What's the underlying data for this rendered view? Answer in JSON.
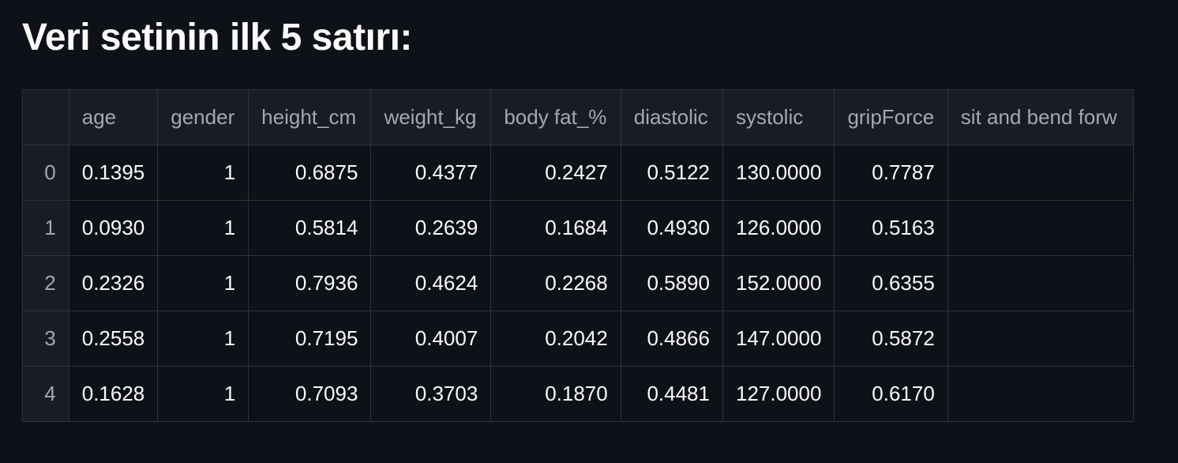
{
  "heading": "Veri setinin ilk 5 satırı:",
  "table": {
    "columns": [
      "",
      "age",
      "gender",
      "height_cm",
      "weight_kg",
      "body fat_%",
      "diastolic",
      "systolic",
      "gripForce",
      "sit and bend forw"
    ],
    "rows": [
      {
        "index": "0",
        "age": "0.1395",
        "gender": "1",
        "height_cm": "0.6875",
        "weight_kg": "0.4377",
        "body_fat": "0.2427",
        "diastolic": "0.5122",
        "systolic": "130.0000",
        "gripForce": "0.7787",
        "sit": ""
      },
      {
        "index": "1",
        "age": "0.0930",
        "gender": "1",
        "height_cm": "0.5814",
        "weight_kg": "0.2639",
        "body_fat": "0.1684",
        "diastolic": "0.4930",
        "systolic": "126.0000",
        "gripForce": "0.5163",
        "sit": ""
      },
      {
        "index": "2",
        "age": "0.2326",
        "gender": "1",
        "height_cm": "0.7936",
        "weight_kg": "0.4624",
        "body_fat": "0.2268",
        "diastolic": "0.5890",
        "systolic": "152.0000",
        "gripForce": "0.6355",
        "sit": ""
      },
      {
        "index": "3",
        "age": "0.2558",
        "gender": "1",
        "height_cm": "0.7195",
        "weight_kg": "0.4007",
        "body_fat": "0.2042",
        "diastolic": "0.4866",
        "systolic": "147.0000",
        "gripForce": "0.5872",
        "sit": ""
      },
      {
        "index": "4",
        "age": "0.1628",
        "gender": "1",
        "height_cm": "0.7093",
        "weight_kg": "0.3703",
        "body_fat": "0.1870",
        "diastolic": "0.4481",
        "systolic": "127.0000",
        "gripForce": "0.6170",
        "sit": ""
      }
    ]
  }
}
